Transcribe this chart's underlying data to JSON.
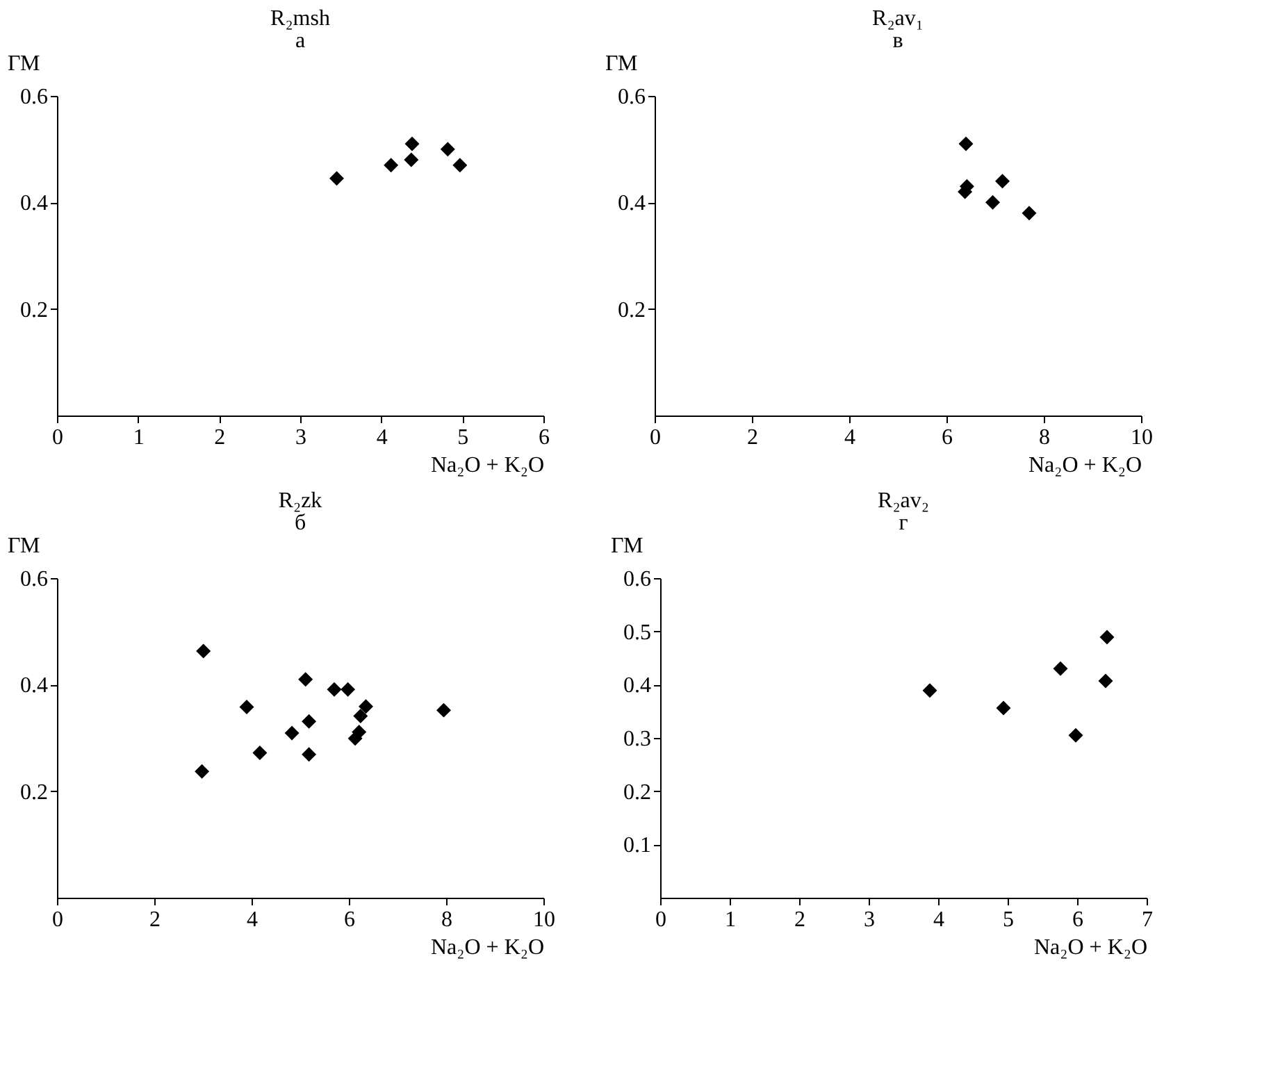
{
  "chart_data": [
    {
      "type": "scatter",
      "title": "R₂msh",
      "subtitle": "а",
      "xlabel": "Na₂O + K₂O",
      "ylabel": "ГМ",
      "marker": "diamond",
      "color": "#000000",
      "xlim": [
        0,
        6
      ],
      "xticks": [
        0,
        1,
        2,
        3,
        4,
        5,
        6
      ],
      "ylim": [
        0,
        0.6
      ],
      "yticks": [
        0.2,
        0.4,
        0.6
      ],
      "x": [
        3.45,
        4.12,
        4.37,
        4.38,
        4.82,
        4.97
      ],
      "values": [
        0.445,
        0.47,
        0.48,
        0.51,
        0.5,
        0.47
      ]
    },
    {
      "type": "scatter",
      "title": "R₂av₁",
      "subtitle": "в",
      "xlabel": "Na₂O + K₂O",
      "ylabel": "ГМ",
      "marker": "diamond",
      "color": "#000000",
      "xlim": [
        0,
        10
      ],
      "xticks": [
        0,
        2,
        4,
        6,
        8,
        10
      ],
      "ylim": [
        0,
        0.6
      ],
      "yticks": [
        0.2,
        0.4,
        0.6
      ],
      "x": [
        6.4,
        6.42,
        6.38,
        7.15,
        6.95,
        7.7
      ],
      "values": [
        0.51,
        0.43,
        0.42,
        0.44,
        0.4,
        0.38
      ]
    },
    {
      "type": "scatter",
      "title": "R₂zk",
      "subtitle": "б",
      "xlabel": "Na₂O + K₂O",
      "ylabel": "ГМ",
      "marker": "diamond",
      "color": "#000000",
      "xlim": [
        0,
        10
      ],
      "xticks": [
        0,
        2,
        4,
        6,
        8,
        10
      ],
      "ylim": [
        0,
        0.6
      ],
      "yticks": [
        0.2,
        0.4,
        0.6
      ],
      "x": [
        3.01,
        2.98,
        3.9,
        4.17,
        5.11,
        5.18,
        4.83,
        5.18,
        5.7,
        5.98,
        6.35,
        6.24,
        6.21,
        6.13,
        7.95
      ],
      "values": [
        0.463,
        0.237,
        0.358,
        0.272,
        0.41,
        0.331,
        0.309,
        0.269,
        0.391,
        0.391,
        0.359,
        0.341,
        0.311,
        0.299,
        0.352
      ]
    },
    {
      "type": "scatter",
      "title": "R₂av₂",
      "subtitle": "г",
      "xlabel": "Na₂O + K₂O",
      "ylabel": "ГМ",
      "marker": "diamond",
      "color": "#000000",
      "xlim": [
        0,
        7
      ],
      "xticks": [
        0,
        1,
        2,
        3,
        4,
        5,
        6,
        7
      ],
      "ylim": [
        0,
        0.6
      ],
      "yticks": [
        0.1,
        0.2,
        0.3,
        0.4,
        0.5,
        0.6
      ],
      "x": [
        3.88,
        4.94,
        5.76,
        6.43,
        6.41,
        5.98
      ],
      "values": [
        0.389,
        0.356,
        0.43,
        0.489,
        0.407,
        0.305
      ]
    }
  ]
}
